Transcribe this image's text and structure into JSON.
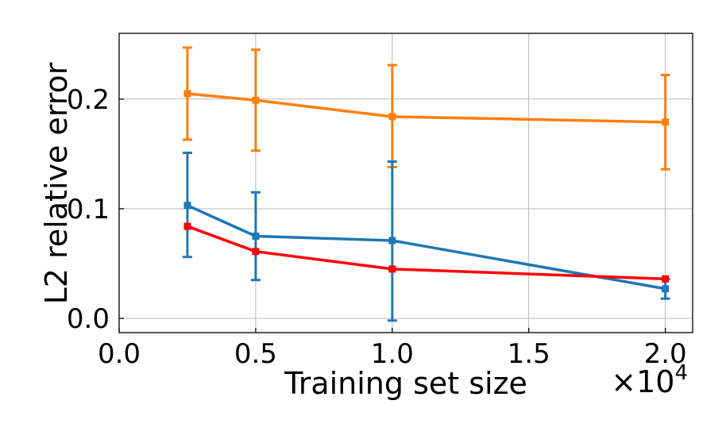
{
  "chart_data": {
    "type": "line",
    "title": "",
    "xlabel": "Training set size",
    "ylabel": "L2 relative error",
    "x_multiplier_label": "×10",
    "x_multiplier_exponent": "4",
    "xlim": [
      0.0,
      2.1
    ],
    "ylim": [
      -0.013,
      0.26
    ],
    "xticks": [
      0.0,
      0.5,
      1.0,
      1.5,
      2.0
    ],
    "xtick_labels": [
      "0.0",
      "0.5",
      "1.0",
      "1.5",
      "2.0"
    ],
    "yticks": [
      0.0,
      0.1,
      0.2
    ],
    "ytick_labels": [
      "0.0",
      "0.1",
      "0.2"
    ],
    "grid": true,
    "legend": "none",
    "series": [
      {
        "color": "#ff7f0e",
        "x": [
          0.25,
          0.5,
          1.0,
          2.0
        ],
        "y": [
          0.205,
          0.199,
          0.184,
          0.179
        ],
        "yerr_low": [
          0.163,
          0.153,
          0.138,
          0.136
        ],
        "yerr_high": [
          0.247,
          0.245,
          0.231,
          0.222
        ]
      },
      {
        "color": "#1f77b4",
        "x": [
          0.25,
          0.5,
          1.0,
          2.0
        ],
        "y": [
          0.103,
          0.075,
          0.071,
          0.027
        ],
        "yerr_low": [
          0.056,
          0.035,
          -0.002,
          0.018
        ],
        "yerr_high": [
          0.151,
          0.115,
          0.143,
          0.036
        ]
      },
      {
        "color": "#ff0000",
        "x": [
          0.25,
          0.5,
          1.0,
          2.0
        ],
        "y": [
          0.084,
          0.061,
          0.045,
          0.036
        ]
      }
    ]
  }
}
